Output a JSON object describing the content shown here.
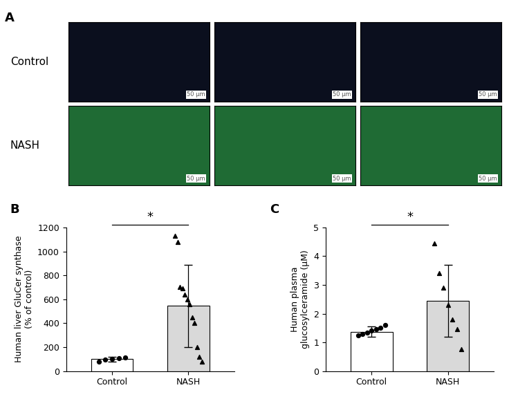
{
  "panel_a": {
    "panel": "A",
    "scale_bar": "50 μm",
    "rows": [
      {
        "label": "Control",
        "count": 3,
        "color": "#0b0f1e"
      },
      {
        "label": "NASH",
        "count": 3,
        "color": "#1f6b34"
      }
    ]
  },
  "chart_data": [
    {
      "type": "bar",
      "panel": "B",
      "categories": [
        "Control",
        "NASH"
      ],
      "values": [
        100,
        545
      ],
      "errors": [
        20,
        345
      ],
      "colors": [
        "#ffffff",
        "#d9d9d9"
      ],
      "points": [
        [
          80,
          95,
          100,
          105,
          112
        ],
        [
          1130,
          1080,
          700,
          690,
          640,
          600,
          560,
          450,
          400,
          200,
          120,
          80
        ]
      ],
      "y_label": "Human liver GluCer synthase\n(% of control)",
      "ylim": [
        0,
        1200
      ],
      "yticks": [
        0,
        200,
        400,
        600,
        800,
        1000,
        1200
      ],
      "significance": "*"
    },
    {
      "type": "bar",
      "panel": "C",
      "categories": [
        "Control",
        "NASH"
      ],
      "values": [
        1.37,
        2.45
      ],
      "errors": [
        0.18,
        1.25
      ],
      "colors": [
        "#ffffff",
        "#d9d9d9"
      ],
      "points": [
        [
          1.25,
          1.3,
          1.35,
          1.4,
          1.45,
          1.5,
          1.6
        ],
        [
          4.45,
          3.4,
          2.9,
          2.3,
          1.8,
          1.45,
          0.75
        ]
      ],
      "y_label": "Human plasma\nglucosylceramide (µM)",
      "ylim": [
        0,
        5
      ],
      "yticks": [
        0,
        1,
        2,
        3,
        4,
        5
      ],
      "significance": "*"
    }
  ]
}
